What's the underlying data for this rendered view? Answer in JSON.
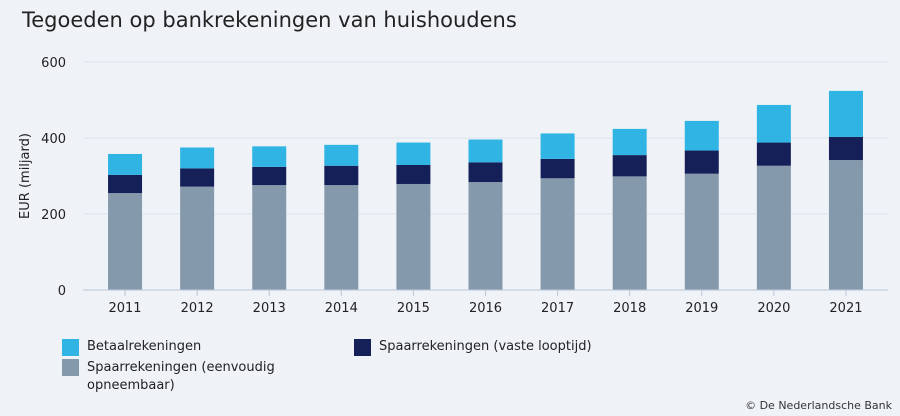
{
  "chart_data": {
    "type": "bar",
    "stacked": true,
    "title": "Tegoeden op bankrekeningen van huishoudens",
    "xlabel": "",
    "ylabel": "EUR (miljard)",
    "ylim": [
      0,
      600
    ],
    "yticks": [
      0,
      200,
      400,
      600
    ],
    "grid": true,
    "legend_position": "bottom",
    "categories": [
      "2011",
      "2012",
      "2013",
      "2014",
      "2015",
      "2016",
      "2017",
      "2018",
      "2019",
      "2020",
      "2021"
    ],
    "series": [
      {
        "name": "Spaarrekeningen (eenvoudig opneembaar)",
        "color": "#8599ad",
        "values": [
          255,
          272,
          276,
          276,
          279,
          284,
          294,
          299,
          306,
          327,
          342
        ]
      },
      {
        "name": "Spaarrekeningen (vaste looptijd)",
        "color": "#162058",
        "values": [
          48,
          48,
          48,
          51,
          50,
          52,
          51,
          56,
          61,
          61,
          61
        ]
      },
      {
        "name": "Betaalrekeningen",
        "color": "#2fb4e4",
        "values": [
          55,
          55,
          54,
          55,
          59,
          60,
          67,
          69,
          78,
          99,
          121
        ]
      }
    ]
  },
  "credit": "© De Nederlandsche Bank"
}
